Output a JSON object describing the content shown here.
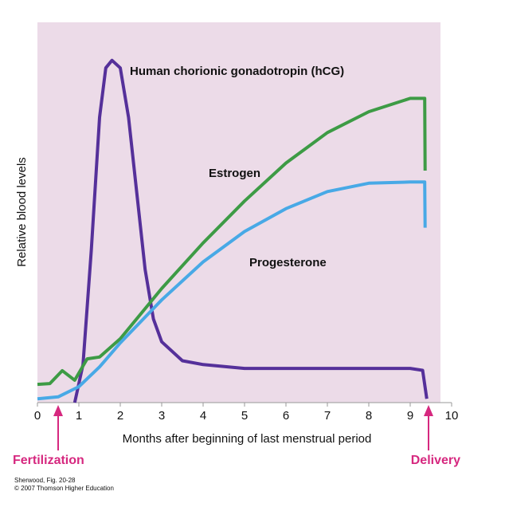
{
  "chart_data": {
    "type": "line",
    "xlabel": "Months after beginning of last menstrual period",
    "ylabel": "Relative blood levels",
    "xlim": [
      0,
      10
    ],
    "ylim": [
      0,
      100
    ],
    "xticks": [
      0,
      1,
      2,
      3,
      4,
      5,
      6,
      7,
      8,
      9,
      10
    ],
    "series": [
      {
        "name": "Human chorionic gonadotropin (hCG)",
        "color": "#55309a",
        "x": [
          0.9,
          1.1,
          1.3,
          1.5,
          1.65,
          1.8,
          2.0,
          2.2,
          2.4,
          2.6,
          2.8,
          3.0,
          3.5,
          4,
          5,
          6,
          7,
          8,
          9,
          9.3,
          9.4
        ],
        "values": [
          0,
          10,
          40,
          75,
          88,
          90,
          88,
          75,
          55,
          35,
          22,
          16,
          11,
          10,
          9,
          9,
          9,
          9,
          9,
          8.5,
          1
        ]
      },
      {
        "name": "Estrogen",
        "color": "#3d9b45",
        "x": [
          0,
          0.3,
          0.6,
          0.9,
          1.2,
          1.5,
          2,
          3,
          4,
          5,
          6,
          7,
          8,
          9,
          9.35,
          9.36
        ],
        "values": [
          4.8,
          5,
          8.4,
          5.9,
          11.5,
          12,
          16.8,
          30,
          42,
          53,
          63,
          71,
          76.5,
          80,
          80,
          61
        ]
      },
      {
        "name": "Progesterone",
        "color": "#48a9e6",
        "x": [
          0,
          0.5,
          1,
          1.5,
          2,
          3,
          4,
          5,
          6,
          7,
          8,
          9,
          9.35,
          9.36
        ],
        "values": [
          1,
          1.5,
          4.2,
          9.4,
          15.7,
          27,
          37,
          45,
          51,
          55.5,
          57.7,
          58,
          58,
          46
        ]
      }
    ],
    "annotations": [
      "Fertilization",
      "Delivery"
    ],
    "source": [
      "Sherwood, Fig. 20-28",
      "© 2007 Thomson Higher Education"
    ]
  }
}
